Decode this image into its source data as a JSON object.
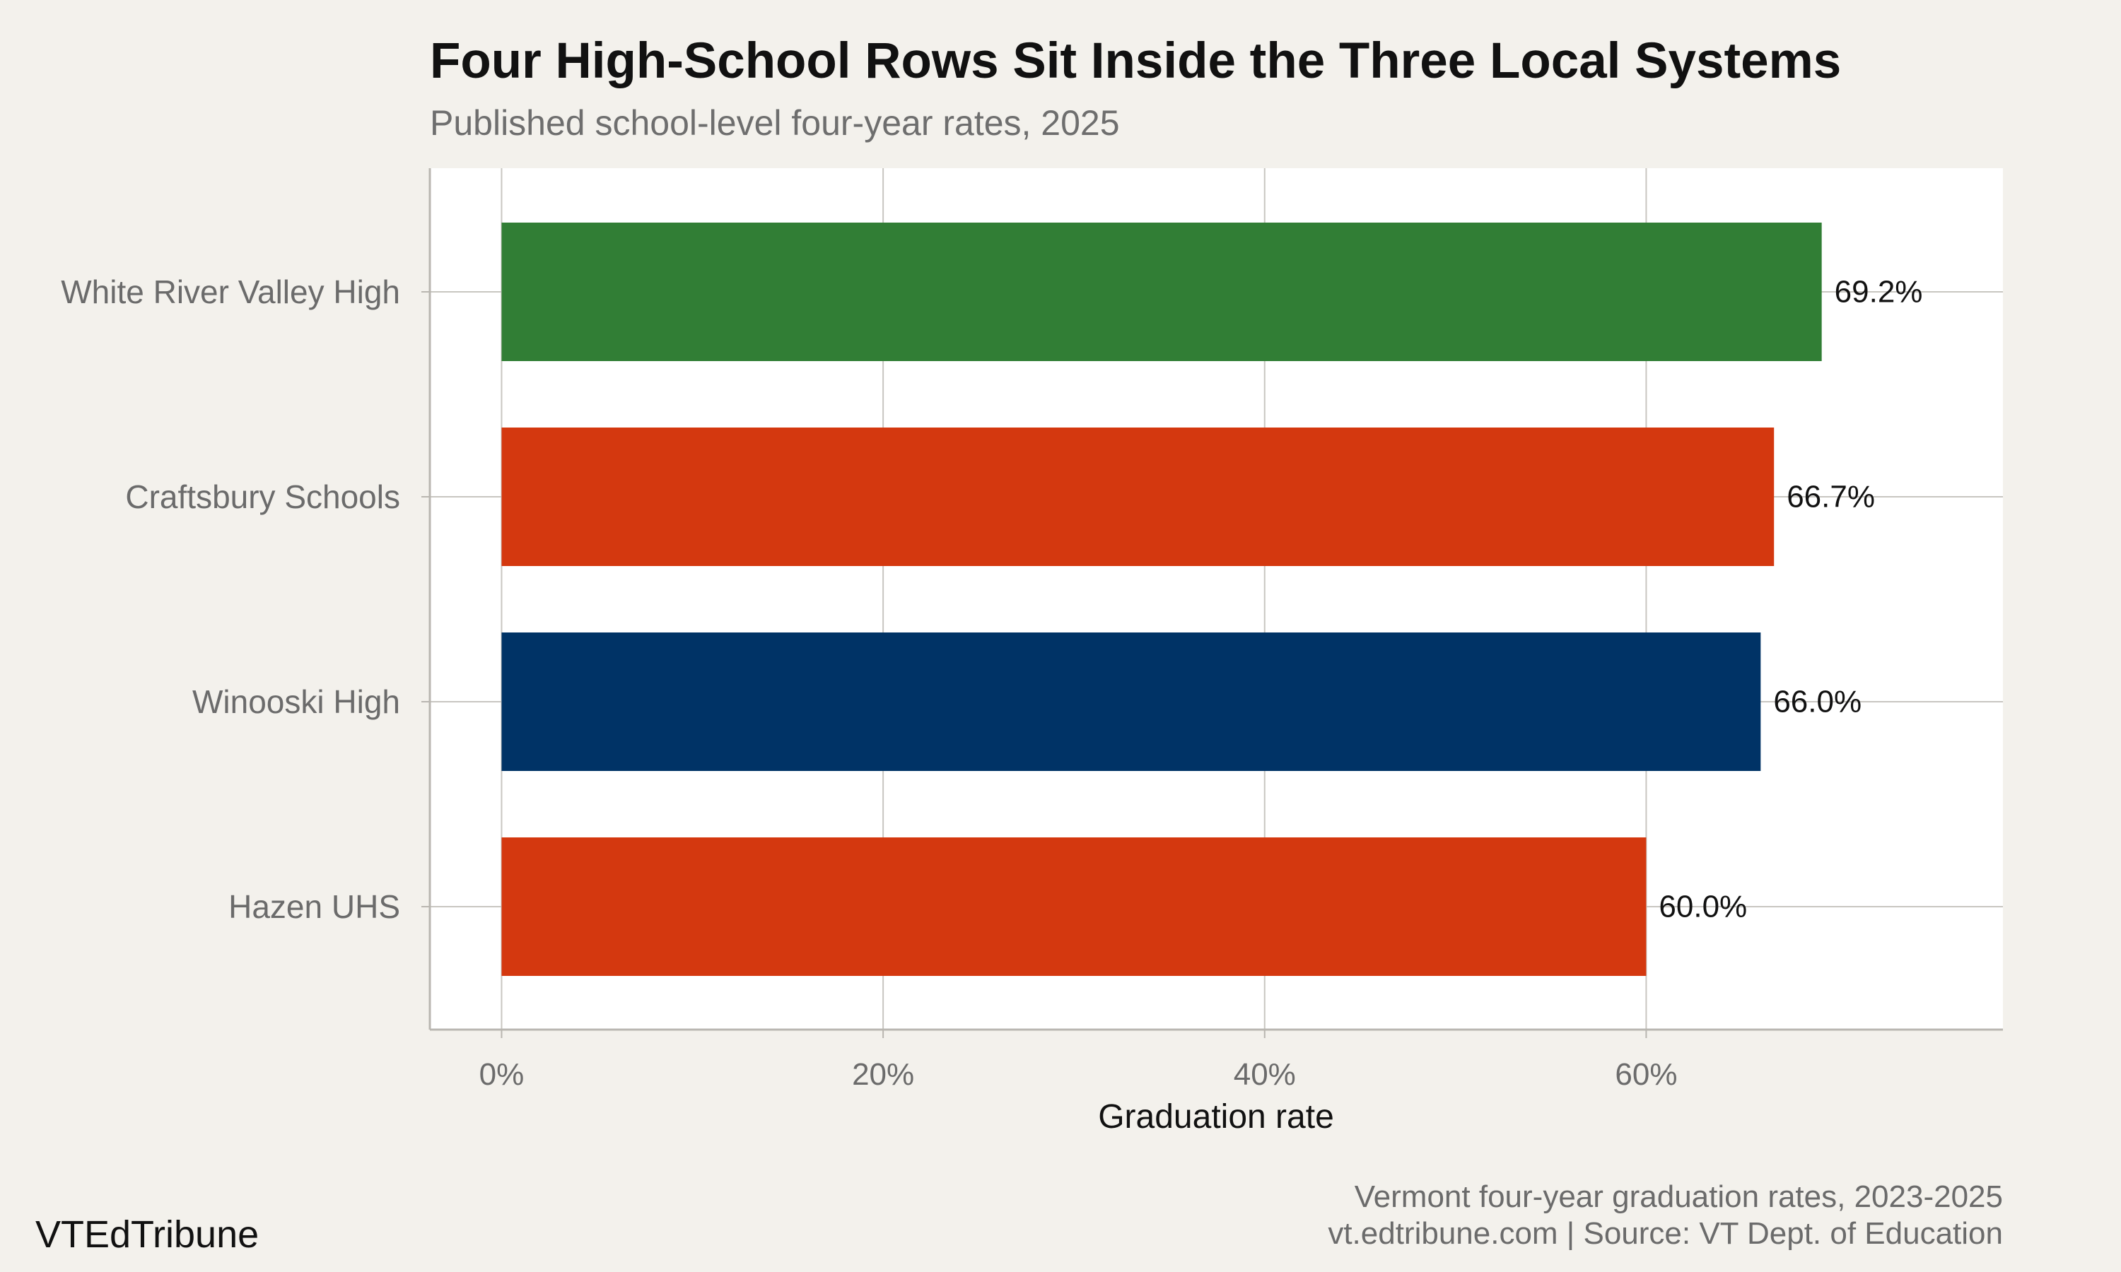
{
  "chart_data": {
    "type": "bar",
    "orientation": "horizontal",
    "title": "Four High-School Rows Sit Inside the Three Local Systems",
    "subtitle": "Published school-level four-year rates, 2025",
    "xlabel": "Graduation rate",
    "ylabel": "",
    "xlim": [
      -3.76,
      78.7
    ],
    "x_ticks": [
      0,
      20,
      40,
      60
    ],
    "x_tick_labels": [
      "0%",
      "20%",
      "40%",
      "60%"
    ],
    "grid": true,
    "legend": "none",
    "categories": [
      "White River Valley High",
      "Craftsbury Schools",
      "Winooski High",
      "Hazen UHS"
    ],
    "values": [
      69.2,
      66.7,
      66.0,
      60.0
    ],
    "value_labels": [
      "69.2%",
      "66.7%",
      "66.0%",
      "60.0%"
    ],
    "colors": [
      "#317e35",
      "#d4380f",
      "#003366",
      "#d4380f"
    ]
  },
  "footer": {
    "brand": "VTEdTribune",
    "note_line1": "Vermont four-year graduation rates, 2023-2025",
    "note_line2": "vt.edtribune.com | Source: VT Dept. of Education"
  },
  "colors": {
    "background": "#f3f1ec",
    "panel": "#ffffff",
    "grid": "#c8c6c1"
  }
}
